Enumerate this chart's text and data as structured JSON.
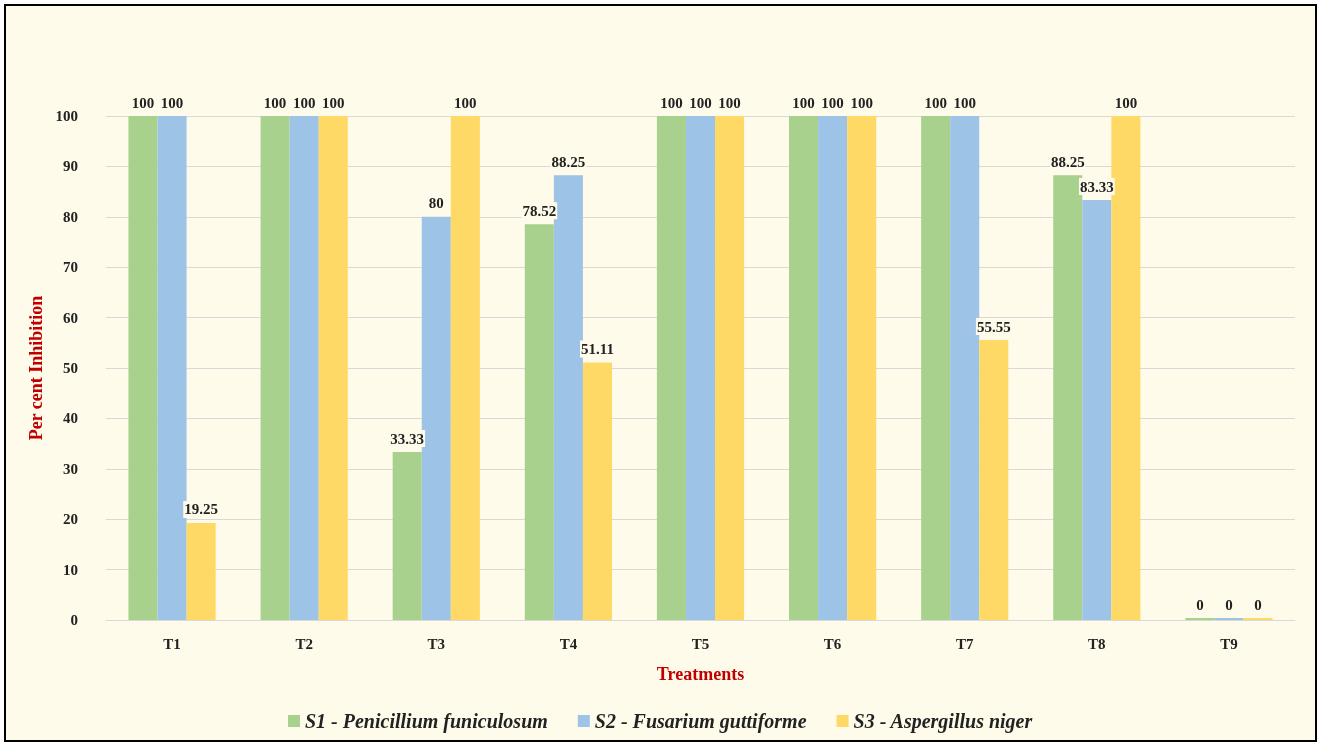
{
  "chart_data": {
    "type": "bar",
    "xlabel": "Treatments",
    "ylabel": "Per cent Inhibition",
    "categories": [
      "T1",
      "T2",
      "T3",
      "T4",
      "T5",
      "T6",
      "T7",
      "T8",
      "T9"
    ],
    "series": [
      {
        "name": "S1 - Penicillium funiculosum",
        "color": "#a9d18e",
        "values": [
          100,
          100,
          33.33,
          78.52,
          100,
          100,
          100,
          88.25,
          0
        ]
      },
      {
        "name": "S2 - Fusarium guttiforme",
        "color": "#9dc3e6",
        "values": [
          100,
          100,
          80,
          88.25,
          100,
          100,
          100,
          83.33,
          0
        ]
      },
      {
        "name": "S3 - Aspergillus niger",
        "color": "#ffd966",
        "values": [
          19.25,
          100,
          100,
          51.11,
          100,
          100,
          55.55,
          100,
          0
        ]
      }
    ],
    "ylim": [
      0,
      100
    ],
    "yticks": [
      0,
      10,
      20,
      30,
      40,
      50,
      60,
      70,
      80,
      90,
      100
    ],
    "grid": "y",
    "legend": "bottom",
    "data_labels": true
  }
}
